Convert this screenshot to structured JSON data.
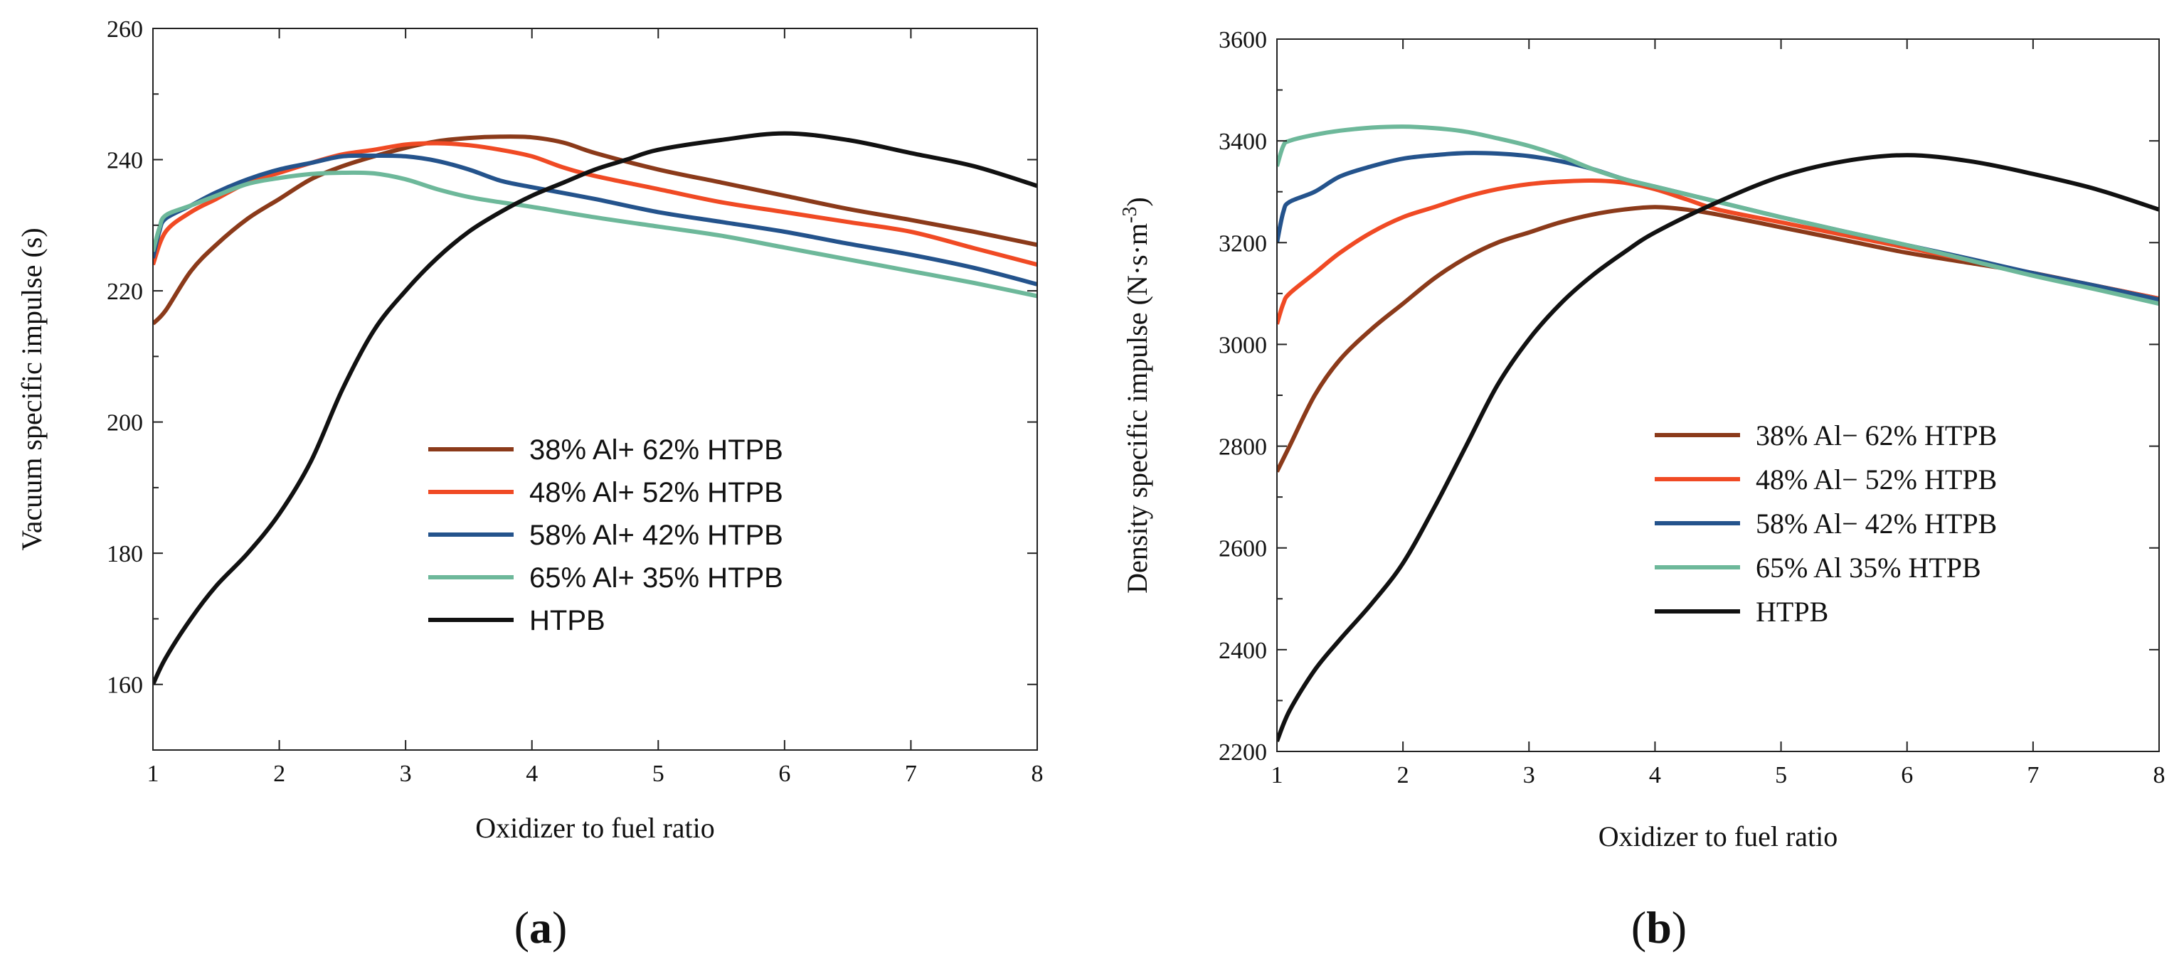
{
  "chart_data": [
    {
      "id": "a",
      "type": "line",
      "panel_label": {
        "open": "(",
        "letter": "a",
        "close": ")"
      },
      "xlabel": "Oxidizer to fuel ratio",
      "ylabel": "Vacuum specific impulse (s)",
      "xlim": [
        1,
        8
      ],
      "ylim": [
        150,
        260
      ],
      "xticks": [
        1,
        2,
        3,
        4,
        5,
        6,
        7,
        8
      ],
      "yticks": [
        160,
        180,
        200,
        220,
        240,
        260
      ],
      "legend_position": "center-right",
      "series": [
        {
          "name": "38% Al+ 62% HTPB",
          "color": "#8B3A1A",
          "x": [
            1,
            1.1,
            1.3,
            1.5,
            1.75,
            2,
            2.25,
            2.5,
            2.75,
            3,
            3.25,
            3.5,
            3.75,
            4,
            4.25,
            4.5,
            5,
            5.5,
            6,
            6.5,
            7,
            7.5,
            8
          ],
          "y": [
            215,
            217,
            223,
            227,
            231,
            234,
            237,
            239,
            240.5,
            241.8,
            242.8,
            243.3,
            243.5,
            243.4,
            242.6,
            241,
            238.5,
            236.5,
            234.5,
            232.5,
            230.8,
            229,
            227
          ]
        },
        {
          "name": "48% Al+ 52% HTPB",
          "color": "#F04A24",
          "x": [
            1,
            1.1,
            1.3,
            1.5,
            1.75,
            2,
            2.25,
            2.5,
            2.75,
            3,
            3.25,
            3.5,
            3.75,
            4,
            4.25,
            4.5,
            5,
            5.5,
            6,
            6.5,
            7,
            7.5,
            8
          ],
          "y": [
            224,
            229,
            232,
            234,
            236.5,
            238,
            239.5,
            240.8,
            241.5,
            242.3,
            242.5,
            242.2,
            241.5,
            240.5,
            238.8,
            237.5,
            235.5,
            233.5,
            232,
            230.5,
            229,
            226.5,
            224
          ]
        },
        {
          "name": "58% Al+ 42% HTPB",
          "color": "#24538C",
          "x": [
            1,
            1.05,
            1.1,
            1.3,
            1.5,
            1.75,
            2,
            2.25,
            2.5,
            2.75,
            3,
            3.25,
            3.5,
            3.75,
            4,
            4.5,
            5,
            5.5,
            6,
            6.5,
            7,
            7.5,
            8
          ],
          "y": [
            225,
            229,
            231,
            233,
            235,
            237,
            238.5,
            239.5,
            240.5,
            240.6,
            240.5,
            239.8,
            238.5,
            236.8,
            235.8,
            234,
            232,
            230.5,
            229,
            227.2,
            225.5,
            223.5,
            221
          ]
        },
        {
          "name": "65% Al+ 35% HTPB",
          "color": "#6DB89A",
          "x": [
            1,
            1.05,
            1.1,
            1.3,
            1.5,
            1.75,
            2,
            2.25,
            2.5,
            2.75,
            3,
            3.25,
            3.5,
            3.75,
            4,
            4.5,
            5,
            5.5,
            6,
            6.5,
            7,
            7.5,
            8
          ],
          "y": [
            226,
            229.5,
            231.5,
            233,
            234.5,
            236.3,
            237.2,
            237.8,
            238,
            237.9,
            237,
            235.5,
            234.3,
            233.5,
            232.8,
            231.2,
            229.8,
            228.4,
            226.6,
            224.8,
            223,
            221.2,
            219.2
          ]
        },
        {
          "name": "HTPB",
          "color": "#111111",
          "x": [
            1,
            1.1,
            1.3,
            1.5,
            1.75,
            2,
            2.25,
            2.5,
            2.75,
            3,
            3.25,
            3.5,
            3.75,
            4,
            4.25,
            4.5,
            4.75,
            5,
            5.5,
            6,
            6.5,
            7,
            7.5,
            8
          ],
          "y": [
            160,
            164,
            170,
            175,
            180,
            186,
            194,
            205,
            214,
            220,
            225,
            229,
            232,
            234.5,
            236.5,
            238.5,
            240,
            241.5,
            243,
            244,
            243,
            241,
            239,
            236
          ]
        }
      ]
    },
    {
      "id": "b",
      "type": "line",
      "panel_label": {
        "open": "(",
        "letter": "b",
        "close": ")"
      },
      "xlabel": "Oxidizer to fuel ratio",
      "ylabel_parts": {
        "main": "Density specific impulse (N·s·m",
        "sup": "-3",
        "end": ")"
      },
      "xlim": [
        1,
        8
      ],
      "ylim": [
        2200,
        3600
      ],
      "xticks": [
        1,
        2,
        3,
        4,
        5,
        6,
        7,
        8
      ],
      "yticks": [
        2200,
        2400,
        2600,
        2800,
        3000,
        3200,
        3400,
        3600
      ],
      "legend_position": "center-right",
      "series": [
        {
          "name": "38% Al− 62% HTPB",
          "color": "#8B3A1A",
          "x": [
            1,
            1.1,
            1.3,
            1.5,
            1.75,
            2,
            2.25,
            2.5,
            2.75,
            3,
            3.25,
            3.5,
            3.75,
            4,
            4.25,
            4.5,
            5,
            5.5,
            6,
            6.5,
            7,
            7.5,
            8
          ],
          "y": [
            2750,
            2800,
            2900,
            2970,
            3030,
            3080,
            3130,
            3170,
            3200,
            3220,
            3240,
            3255,
            3265,
            3270,
            3265,
            3255,
            3230,
            3205,
            3180,
            3160,
            3140,
            3115,
            3090
          ]
        },
        {
          "name": "48% Al− 52% HTPB",
          "color": "#F04A24",
          "x": [
            1,
            1.05,
            1.1,
            1.3,
            1.5,
            1.75,
            2,
            2.25,
            2.5,
            2.75,
            3,
            3.25,
            3.5,
            3.75,
            4,
            4.25,
            4.5,
            5,
            5.5,
            6,
            6.5,
            7,
            7.5,
            8
          ],
          "y": [
            3040,
            3080,
            3100,
            3140,
            3180,
            3220,
            3250,
            3270,
            3290,
            3305,
            3315,
            3320,
            3322,
            3318,
            3305,
            3285,
            3265,
            3240,
            3215,
            3190,
            3165,
            3140,
            3115,
            3090
          ]
        },
        {
          "name": "58% Al− 42% HTPB",
          "color": "#24538C",
          "x": [
            1,
            1.05,
            1.1,
            1.3,
            1.5,
            1.75,
            2,
            2.25,
            2.5,
            2.75,
            3,
            3.25,
            3.5,
            3.75,
            4,
            4.5,
            5,
            5.5,
            6,
            6.5,
            7,
            7.5,
            8
          ],
          "y": [
            3200,
            3260,
            3280,
            3300,
            3330,
            3350,
            3365,
            3372,
            3376,
            3375,
            3370,
            3360,
            3345,
            3325,
            3310,
            3280,
            3250,
            3222,
            3195,
            3168,
            3140,
            3115,
            3088
          ]
        },
        {
          "name": "65% Al   35% HTPB",
          "color": "#6DB89A",
          "x": [
            1,
            1.05,
            1.1,
            1.3,
            1.5,
            1.75,
            2,
            2.25,
            2.5,
            2.75,
            3,
            3.25,
            3.5,
            3.75,
            4,
            4.5,
            5,
            5.5,
            6,
            6.5,
            7,
            7.5,
            8
          ],
          "y": [
            3350,
            3390,
            3400,
            3412,
            3420,
            3426,
            3428,
            3425,
            3418,
            3405,
            3390,
            3370,
            3345,
            3325,
            3310,
            3280,
            3250,
            3222,
            3195,
            3165,
            3135,
            3108,
            3080
          ]
        },
        {
          "name": "HTPB",
          "color": "#111111",
          "x": [
            1,
            1.1,
            1.3,
            1.5,
            1.75,
            2,
            2.25,
            2.5,
            2.75,
            3,
            3.25,
            3.5,
            3.75,
            4,
            4.5,
            5,
            5.5,
            6,
            6.5,
            7,
            7.5,
            8
          ],
          "y": [
            2220,
            2280,
            2360,
            2420,
            2490,
            2570,
            2680,
            2800,
            2920,
            3010,
            3080,
            3135,
            3180,
            3220,
            3280,
            3330,
            3360,
            3372,
            3360,
            3335,
            3305,
            3265
          ]
        }
      ]
    }
  ]
}
